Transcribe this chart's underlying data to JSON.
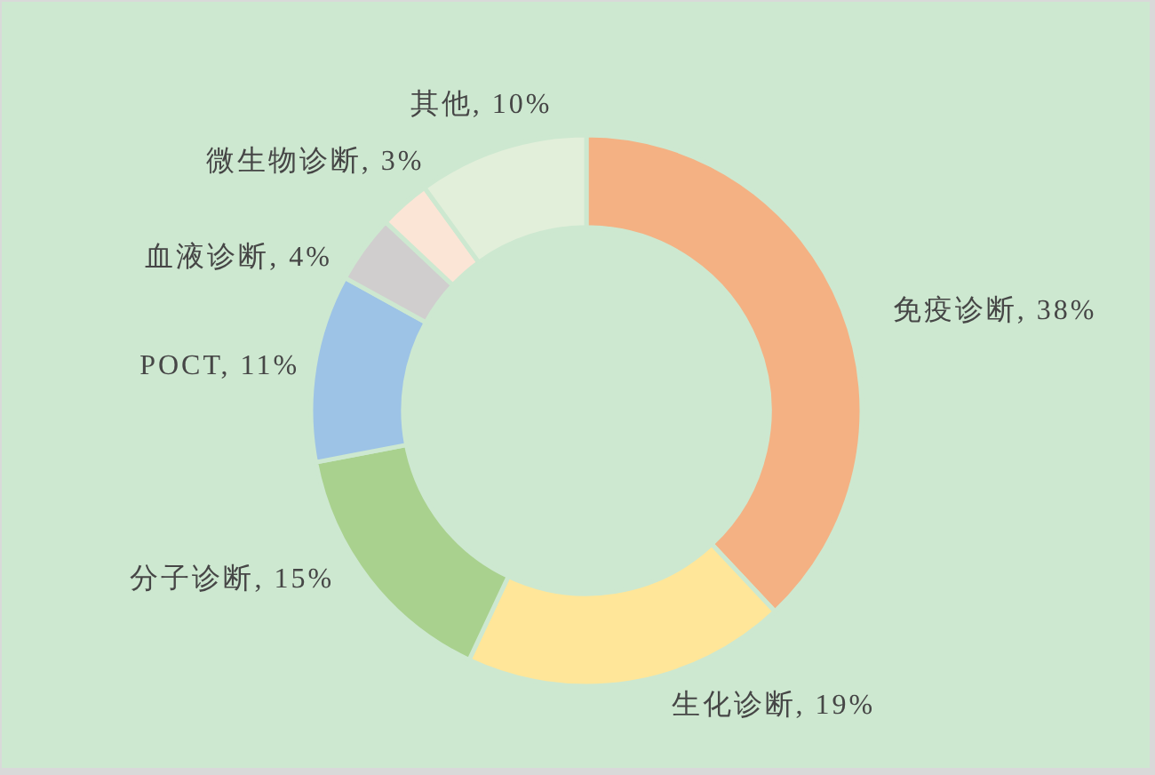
{
  "chart_data": {
    "type": "donut",
    "categories": [
      "免疫诊断",
      "生化诊断",
      "分子诊断",
      "POCT",
      "血液诊断",
      "微生物诊断",
      "其他"
    ],
    "values": [
      38,
      19,
      15,
      11,
      4,
      3,
      10
    ],
    "value_labels": [
      "38%",
      "19%",
      "15%",
      "11%",
      "4%",
      "3%",
      "10%"
    ],
    "colors": [
      "#f4b183",
      "#ffe699",
      "#a9d18e",
      "#9dc3e6",
      "#d0cece",
      "#fbe5d6",
      "#e2efda"
    ]
  }
}
